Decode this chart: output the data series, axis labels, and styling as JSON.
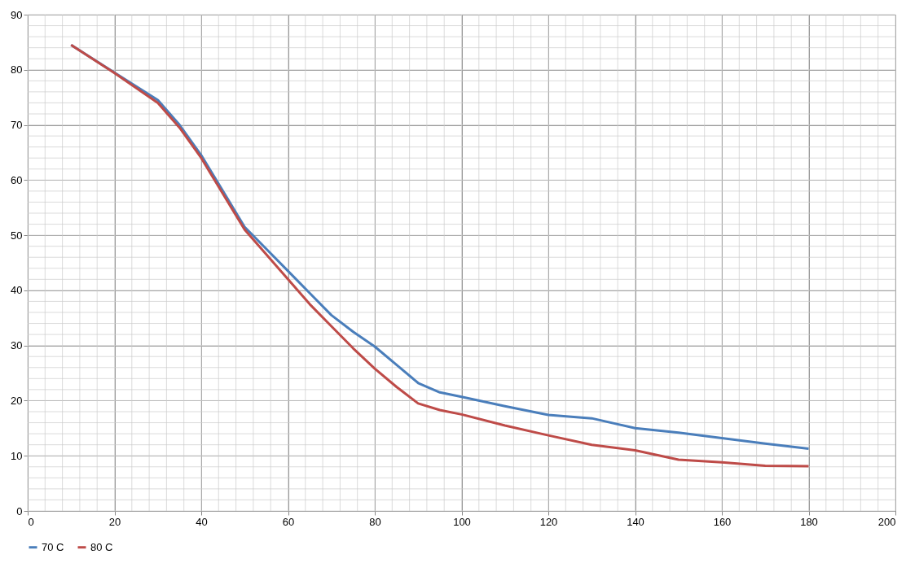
{
  "chart_data": {
    "type": "line",
    "x": [
      10,
      20,
      30,
      35,
      40,
      45,
      50,
      55,
      60,
      65,
      70,
      75,
      80,
      85,
      90,
      95,
      100,
      110,
      120,
      130,
      140,
      150,
      160,
      170,
      180
    ],
    "series": [
      {
        "name": "70 C",
        "color": "#4a7ebb",
        "values": [
          84.5,
          79.5,
          74.5,
          70,
          64.5,
          58,
          51.5,
          47.5,
          43.5,
          39.5,
          35.5,
          32.5,
          29.8,
          26.5,
          23.2,
          21.5,
          20.7,
          19,
          17.4,
          16.8,
          15,
          14.2,
          13.2,
          12.2,
          11.3
        ]
      },
      {
        "name": "80 C",
        "color": "#be4b48",
        "values": [
          84.5,
          79.4,
          74,
          69.5,
          64,
          57.5,
          51,
          46.5,
          42,
          37.5,
          33.5,
          29.5,
          25.8,
          22.5,
          19.5,
          18.3,
          17.5,
          15.5,
          13.7,
          12,
          11,
          9.3,
          8.8,
          8.2,
          8.1
        ]
      }
    ],
    "xlim": [
      0,
      200
    ],
    "xticks": [
      0,
      20,
      40,
      60,
      80,
      100,
      120,
      140,
      160,
      180,
      200
    ],
    "ylim": [
      0,
      90
    ],
    "yticks": [
      0,
      10,
      20,
      30,
      40,
      50,
      60,
      70,
      80,
      90
    ],
    "grid": true,
    "legend": "bottom",
    "line_style": "solid",
    "marker": "none"
  }
}
